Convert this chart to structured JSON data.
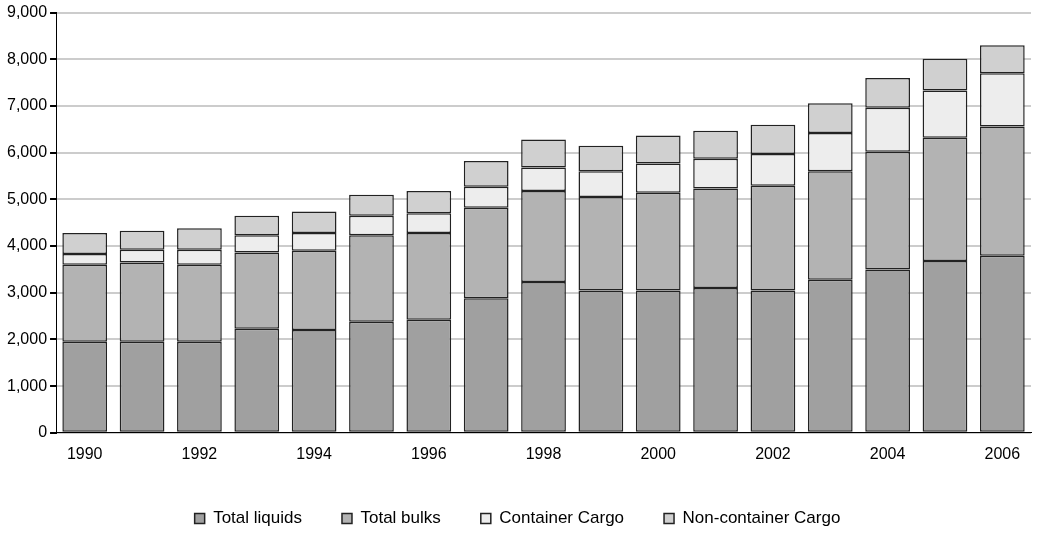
{
  "chart_data": {
    "type": "bar",
    "stacked": true,
    "categories": [
      "1990",
      null,
      "1992",
      null,
      "1994",
      null,
      "1996",
      null,
      "1998",
      null,
      "2000",
      null,
      "2002",
      null,
      "2004",
      null,
      "2006"
    ],
    "series": [
      {
        "name": "Total liquids",
        "color": "#a0a0a0",
        "values": [
          1950,
          1950,
          1950,
          2230,
          2200,
          2380,
          2420,
          2880,
          3230,
          3050,
          3050,
          3100,
          3050,
          3280,
          3500,
          3680,
          3790
        ]
      },
      {
        "name": "Total bulks",
        "color": "#b3b3b3",
        "values": [
          1650,
          1700,
          1650,
          1630,
          1700,
          1850,
          1860,
          1940,
          1950,
          2000,
          2090,
          2130,
          2240,
          2320,
          2520,
          2640,
          2770
        ]
      },
      {
        "name": "Container Cargo",
        "color": "#ededed",
        "values": [
          230,
          270,
          320,
          370,
          380,
          420,
          420,
          450,
          500,
          550,
          630,
          640,
          680,
          820,
          940,
          1010,
          1140
        ]
      },
      {
        "name": "Non-container Cargo",
        "color": "#d0d0d0",
        "values": [
          450,
          410,
          460,
          420,
          460,
          450,
          480,
          550,
          600,
          550,
          600,
          600,
          630,
          640,
          640,
          680,
          600
        ]
      }
    ],
    "ylim": [
      0,
      9000
    ],
    "yticks": [
      0,
      {
        "value": 1000,
        "label": "1,000"
      },
      {
        "value": 2000,
        "label": "2,000"
      },
      {
        "value": 3000,
        "label": "3,000"
      },
      {
        "value": 4000,
        "label": "4,000"
      },
      {
        "value": 5000,
        "label": "5,000"
      },
      {
        "value": 6000,
        "label": "6,000"
      },
      {
        "value": 7000,
        "label": "7,000"
      },
      {
        "value": 8000,
        "label": "8,000"
      },
      {
        "value": 9000,
        "label": "9,000"
      }
    ],
    "grid": "y",
    "legend": "bottom"
  }
}
